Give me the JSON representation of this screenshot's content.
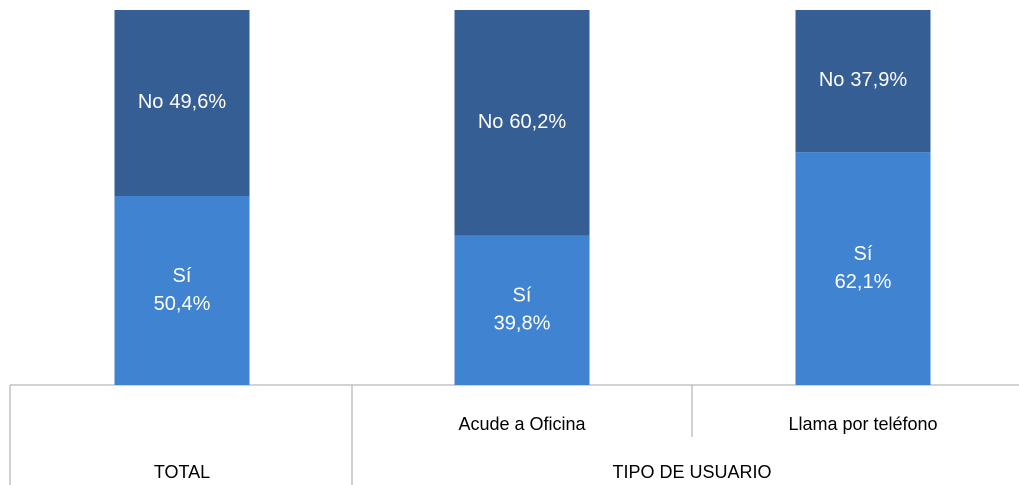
{
  "chart_data": {
    "type": "stacked_bar",
    "categories": [
      "TOTAL",
      "Acude a Oficina",
      "Llama por teléfono"
    ],
    "group_label": "TIPO DE USUARIO",
    "series": [
      {
        "name": "Sí",
        "color": "#3f83d1",
        "values": [
          50.4,
          39.8,
          62.1
        ],
        "value_labels": [
          "50,4%",
          "39,8%",
          "62,1%"
        ]
      },
      {
        "name": "No",
        "color": "#355f94",
        "values": [
          49.6,
          60.2,
          37.9
        ],
        "value_labels": [
          "49,6%",
          "60,2%",
          "37,9%"
        ]
      }
    ]
  }
}
